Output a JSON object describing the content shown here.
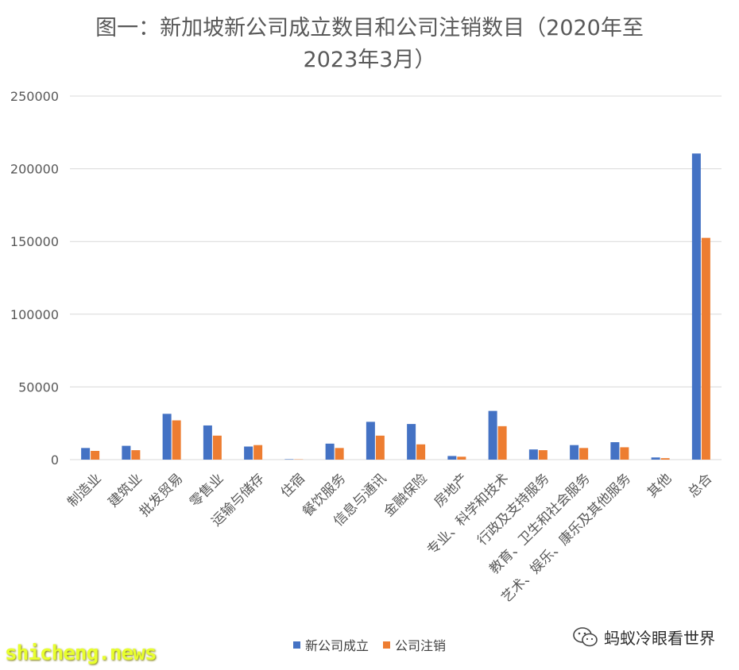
{
  "chart_data": {
    "type": "bar",
    "title_line1": "图一：新加坡新公司成立数目和公司注销数目（2020年至",
    "title_line2": "2023年3月）",
    "categories": [
      "制造业",
      "建筑业",
      "批发贸易",
      "零售业",
      "运输与储存",
      "住宿",
      "餐饮服务",
      "信息与通讯",
      "金融保险",
      "房地产",
      "专业、科学和技术",
      "行政及支持服务",
      "教育、卫生和社会服务",
      "艺术、娱乐、康乐及其他服务",
      "其他",
      "总合"
    ],
    "series": [
      {
        "name": "新公司成立",
        "color": "#4472C4",
        "values": [
          8000,
          9500,
          31500,
          23500,
          9000,
          300,
          11000,
          26000,
          24500,
          2500,
          33500,
          7000,
          10000,
          12000,
          1500,
          210500
        ]
      },
      {
        "name": "公司注销",
        "color": "#ED7D31",
        "values": [
          6000,
          6500,
          27000,
          16500,
          10000,
          200,
          8000,
          16500,
          10500,
          2000,
          23000,
          6500,
          8000,
          8500,
          1000,
          152500
        ]
      }
    ],
    "ylim": [
      0,
      250000
    ],
    "yticks": [
      "0",
      "50000",
      "100000",
      "150000",
      "200000",
      "250000"
    ],
    "grid": true,
    "legend_position": "bottom"
  },
  "watermark": {
    "left_text": "shicheng.news",
    "right_text": "蚂蚁冷眼看世界",
    "right_icon": "wechat-icon"
  }
}
